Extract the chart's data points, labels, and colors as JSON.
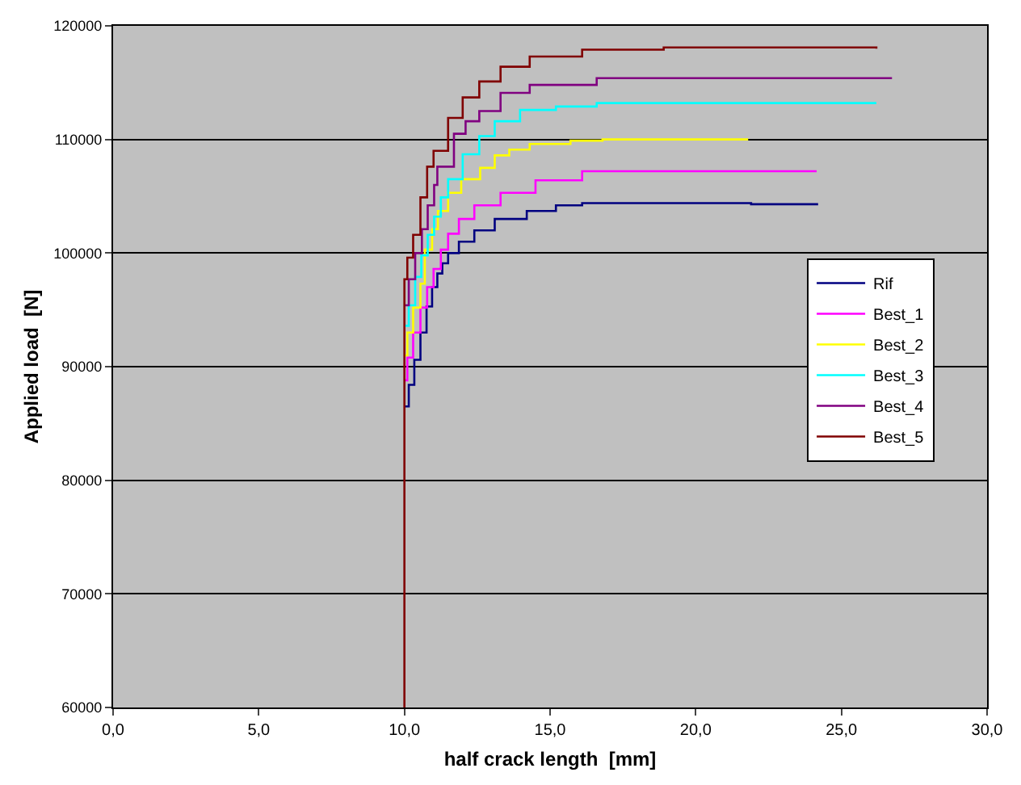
{
  "chart_data": {
    "type": "step",
    "xlabel": "half crack length  [mm]",
    "ylabel": "Applied load  [N]",
    "xlim": [
      0,
      30
    ],
    "ylim": [
      60000,
      120000
    ],
    "xticks": [
      {
        "value": 0,
        "label": "0,0"
      },
      {
        "value": 5,
        "label": "5,0"
      },
      {
        "value": 10,
        "label": "10,0"
      },
      {
        "value": 15,
        "label": "15,0"
      },
      {
        "value": 20,
        "label": "20,0"
      },
      {
        "value": 25,
        "label": "25,0"
      },
      {
        "value": 30,
        "label": "30,0"
      }
    ],
    "yticks": [
      60000,
      70000,
      80000,
      90000,
      100000,
      110000,
      120000
    ],
    "grid": "y",
    "legend": "right",
    "marker": "none",
    "line_style": "solid",
    "series": [
      {
        "name": "Rif",
        "color": "#000080",
        "x": [
          10.0,
          10.15,
          10.34,
          10.55,
          10.76,
          10.95,
          11.13,
          11.3,
          11.5,
          11.87,
          12.4,
          13.1,
          14.2,
          15.2,
          16.1,
          21.9,
          24.2
        ],
        "values": [
          86500,
          88400,
          90600,
          93000,
          95300,
          97000,
          98200,
          99100,
          100000,
          101000,
          102000,
          103000,
          103700,
          104200,
          104400,
          104300,
          104300
        ]
      },
      {
        "name": "Best_1",
        "color": "#ff00ff",
        "x": [
          10.0,
          10.1,
          10.3,
          10.55,
          10.78,
          11.0,
          11.25,
          11.5,
          11.87,
          12.4,
          13.3,
          14.5,
          16.1,
          24.15
        ],
        "values": [
          88800,
          90800,
          93000,
          95200,
          97000,
          98600,
          100300,
          101700,
          103000,
          104200,
          105300,
          106400,
          107200,
          107200
        ]
      },
      {
        "name": "Best_2",
        "color": "#ffff00",
        "x": [
          10.0,
          10.1,
          10.3,
          10.55,
          10.7,
          10.95,
          11.15,
          11.5,
          11.95,
          12.6,
          13.1,
          13.6,
          14.3,
          15.7,
          16.8,
          21.8
        ],
        "values": [
          91000,
          93000,
          95200,
          97300,
          100300,
          102100,
          103700,
          105300,
          106500,
          107500,
          108600,
          109100,
          109600,
          109900,
          110000,
          110000
        ]
      },
      {
        "name": "Best_3",
        "color": "#00ffff",
        "x": [
          10.0,
          10.15,
          10.37,
          10.58,
          10.8,
          11.02,
          11.25,
          11.5,
          12.0,
          12.57,
          13.1,
          13.97,
          15.2,
          16.6,
          26.2
        ],
        "values": [
          93600,
          95400,
          97900,
          99800,
          101600,
          103200,
          104900,
          106500,
          108700,
          110300,
          111600,
          112600,
          112900,
          113200,
          113200
        ]
      },
      {
        "name": "Best_4",
        "color": "#800080",
        "x": [
          10.0,
          10.15,
          10.37,
          10.6,
          10.8,
          11.02,
          11.13,
          11.7,
          12.1,
          12.57,
          13.3,
          14.3,
          16.6,
          26.7
        ],
        "values": [
          95400,
          97700,
          100000,
          102100,
          104200,
          106000,
          107600,
          110500,
          111600,
          112500,
          114100,
          114800,
          115400,
          115300
        ]
      },
      {
        "name": "Best_5",
        "color": "#800000",
        "x": [
          10.0,
          10.0,
          10.1,
          10.3,
          10.55,
          10.78,
          11.0,
          11.5,
          12.0,
          12.57,
          13.3,
          14.3,
          16.1,
          18.9,
          26.2
        ],
        "values": [
          60000,
          97700,
          99600,
          101600,
          104900,
          107600,
          109000,
          111900,
          113700,
          115100,
          116400,
          117300,
          117900,
          118100,
          118000
        ]
      }
    ]
  }
}
